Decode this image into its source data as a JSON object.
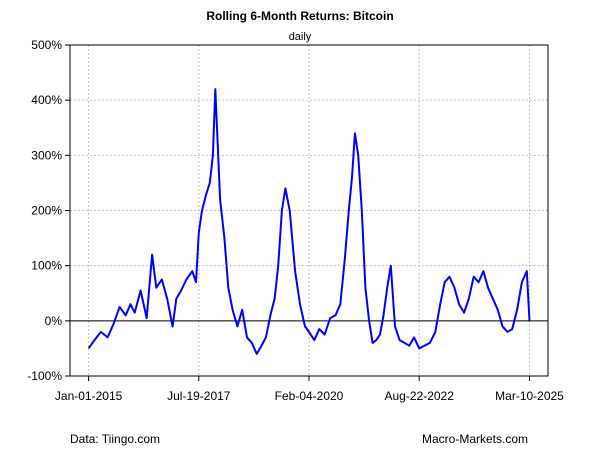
{
  "chart_data": {
    "type": "line",
    "title": "Rolling 6-Month Returns: Bitcoin",
    "subtitle": "daily",
    "xlabel": "",
    "ylabel": "",
    "ylim": [
      -100,
      500
    ],
    "y_ticks": [
      -100,
      0,
      100,
      200,
      300,
      400,
      500
    ],
    "y_tick_labels": [
      "-100%",
      "0%",
      "100%",
      "200%",
      "300%",
      "400%",
      "500%"
    ],
    "x_ticks": [
      "2015-01-01",
      "2017-07-19",
      "2020-02-04",
      "2022-08-22",
      "2025-03-10"
    ],
    "x_tick_labels": [
      "Jan-01-2015",
      "Jul-19-2017",
      "Feb-04-2020",
      "Aug-22-2022",
      "Mar-10-2025"
    ],
    "xlim": [
      "2014-07-28",
      "2025-08-13"
    ],
    "grid": true,
    "reference_line": 0,
    "series": [
      {
        "color": "#0000ff",
        "x": [
          "2015-01-01",
          "2015-02-20",
          "2015-04-15",
          "2015-06-10",
          "2015-08-01",
          "2015-09-20",
          "2015-11-10",
          "2015-12-20",
          "2016-01-25",
          "2016-03-15",
          "2016-05-05",
          "2016-06-20",
          "2016-07-25",
          "2016-09-10",
          "2016-10-25",
          "2016-12-10",
          "2017-01-10",
          "2017-02-20",
          "2017-04-05",
          "2017-05-25",
          "2017-06-25",
          "2017-07-19",
          "2017-08-15",
          "2017-09-20",
          "2017-10-20",
          "2017-11-15",
          "2017-12-05",
          "2017-12-20",
          "2018-01-15",
          "2018-02-20",
          "2018-03-25",
          "2018-04-30",
          "2018-06-10",
          "2018-07-20",
          "2018-08-30",
          "2018-10-10",
          "2018-11-20",
          "2018-12-30",
          "2019-02-05",
          "2019-03-15",
          "2019-04-20",
          "2019-05-20",
          "2019-06-20",
          "2019-07-20",
          "2019-08-25",
          "2019-10-10",
          "2019-11-20",
          "2020-01-01",
          "2020-02-04",
          "2020-03-20",
          "2020-05-01",
          "2020-06-15",
          "2020-08-01",
          "2020-09-15",
          "2020-10-25",
          "2020-12-01",
          "2021-01-05",
          "2021-02-01",
          "2021-02-25",
          "2021-03-25",
          "2021-04-25",
          "2021-05-25",
          "2021-06-25",
          "2021-07-25",
          "2021-08-25",
          "2021-09-25",
          "2021-10-25",
          "2021-11-25",
          "2021-12-25",
          "2022-01-30",
          "2022-03-10",
          "2022-04-20",
          "2022-05-30",
          "2022-07-10",
          "2022-08-22",
          "2022-10-05",
          "2022-11-20",
          "2023-01-05",
          "2023-02-15",
          "2023-03-25",
          "2023-05-05",
          "2023-06-15",
          "2023-07-25",
          "2023-09-05",
          "2023-10-15",
          "2023-11-25",
          "2024-01-05",
          "2024-02-15",
          "2024-03-25",
          "2024-05-05",
          "2024-06-15",
          "2024-07-25",
          "2024-09-05",
          "2024-10-15",
          "2024-11-25",
          "2025-01-05",
          "2025-02-15",
          "2025-03-10"
        ],
        "values": [
          -50,
          -35,
          -20,
          -30,
          -5,
          25,
          10,
          30,
          15,
          55,
          5,
          120,
          60,
          75,
          40,
          -10,
          40,
          55,
          75,
          90,
          70,
          160,
          200,
          230,
          250,
          300,
          420,
          350,
          220,
          150,
          60,
          20,
          -10,
          20,
          -30,
          -40,
          -60,
          -45,
          -30,
          10,
          40,
          100,
          200,
          240,
          200,
          90,
          30,
          -10,
          -20,
          -35,
          -15,
          -25,
          5,
          10,
          30,
          110,
          200,
          260,
          340,
          300,
          200,
          60,
          0,
          -40,
          -35,
          -25,
          10,
          60,
          100,
          -10,
          -35,
          -40,
          -45,
          -30,
          -50,
          -45,
          -40,
          -20,
          30,
          70,
          80,
          60,
          30,
          15,
          40,
          80,
          70,
          90,
          60,
          40,
          20,
          -10,
          -20,
          -15,
          20,
          70,
          90,
          0
        ]
      }
    ]
  },
  "footer": {
    "source": "Data: Tiingo.com",
    "site": "Macro-Markets.com"
  }
}
